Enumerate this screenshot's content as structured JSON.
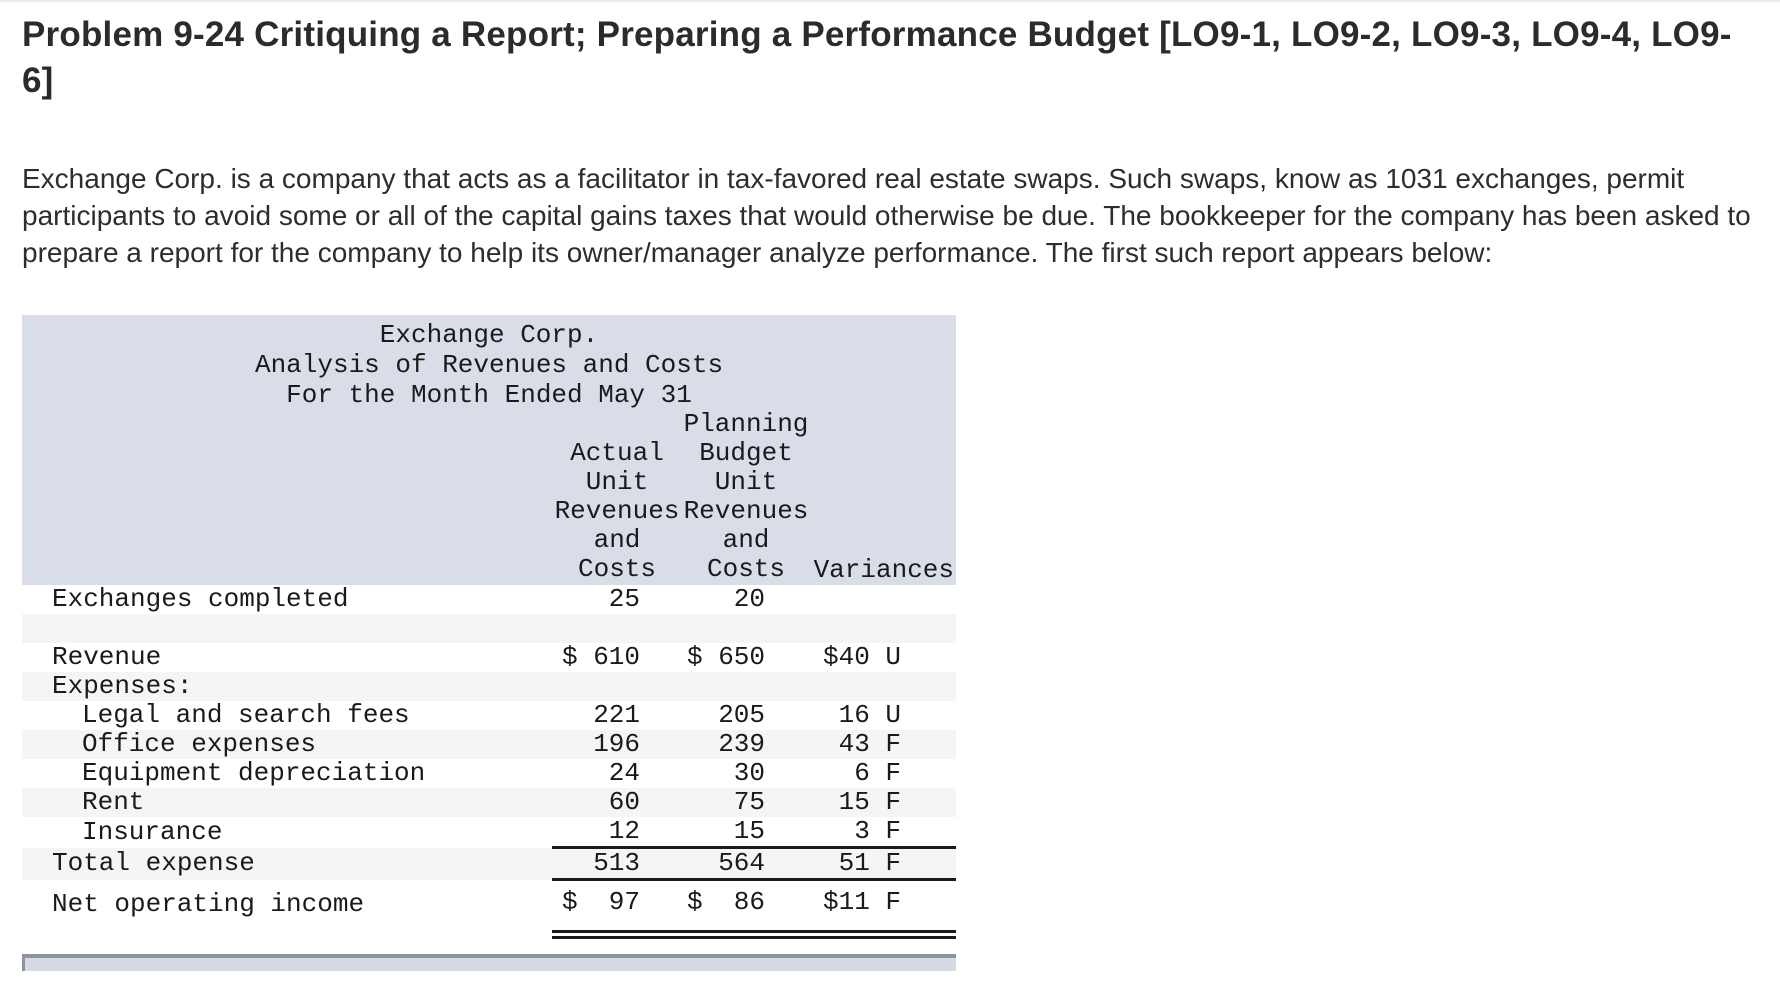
{
  "page": {
    "title": "Problem 9-24 Critiquing a Report; Preparing a Performance Budget [LO9-1, LO9-2, LO9-3, LO9-4, LO9-6]",
    "intro": "Exchange Corp. is a company that acts as a facilitator in tax-favored real estate swaps. Such swaps, know as 1031 exchanges, permit participants to avoid some or all of the capital gains taxes that would otherwise be due. The bookkeeper for the company has been asked to prepare a report for the company to help its owner/manager analyze performance. The first such report appears below:"
  },
  "report": {
    "company": "Exchange Corp.",
    "subtitle": "Analysis of Revenues and Costs",
    "period": "For the Month Ended May 31",
    "column_headers": {
      "actual": "Actual\nUnit\nRevenues\nand\nCosts",
      "planning_budget": "Planning\nBudget\nUnit\nRevenues\nand\nCosts",
      "variances": "Variances"
    },
    "rows": [
      {
        "label": "Exchanges completed",
        "actual": "25",
        "budget": "20",
        "variance": ""
      },
      {
        "label": "",
        "actual": "",
        "budget": "",
        "variance": ""
      },
      {
        "label": "Revenue",
        "actual": "$ 610",
        "budget": "$ 650",
        "variance": "$40 U"
      },
      {
        "label": "Expenses:",
        "actual": "",
        "budget": "",
        "variance": ""
      },
      {
        "label": "Legal and search fees",
        "actual": "221",
        "budget": "205",
        "variance": "16 U"
      },
      {
        "label": "Office expenses",
        "actual": "196",
        "budget": "239",
        "variance": "43 F"
      },
      {
        "label": "Equipment depreciation",
        "actual": "24",
        "budget": "30",
        "variance": "6 F"
      },
      {
        "label": "Rent",
        "actual": "60",
        "budget": "75",
        "variance": "15 F"
      },
      {
        "label": "Insurance",
        "actual": "12",
        "budget": "15",
        "variance": "3 F"
      },
      {
        "label": "Total expense",
        "actual": "513",
        "budget": "564",
        "variance": "51 F"
      },
      {
        "label": "Net operating income",
        "actual": "$  97",
        "budget": "$  86",
        "variance": "$11 F"
      }
    ]
  },
  "colors": {
    "report_header_bg": "#d9dde8",
    "row_stripe": "#f5f5f6",
    "rule": "#1a1a1a",
    "next_section_bar_fill": "#d6dae4",
    "next_section_bar_border": "#8c93a0",
    "page_top_border": "#ebebed",
    "text": "#2d2d2d"
  }
}
